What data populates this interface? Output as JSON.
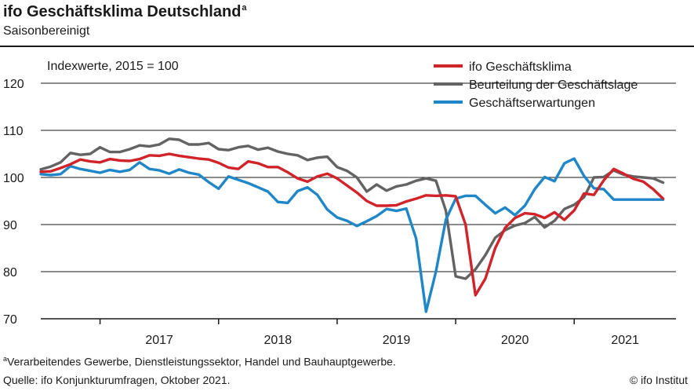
{
  "header": {
    "title": "ifo Geschäftsklima Deutschland",
    "title_mark": "a",
    "subtitle": "Saisonbereinigt"
  },
  "footer": {
    "note_mark": "a",
    "note": "Verarbeitendes Gewerbe, Dienstleistungssektor, Handel und Bauhauptgewerbe.",
    "source": "Quelle: ifo Konjunkturumfragen, Oktober 2021.",
    "copyright": "© ifo Institut"
  },
  "chart_data": {
    "type": "line",
    "index_label": "Indexwerte, 2015 = 100",
    "x_start": "2016-07",
    "x_end": "2021-10",
    "ylim": [
      70,
      120
    ],
    "yticks": [
      70,
      80,
      90,
      100,
      110,
      120
    ],
    "year_labels": [
      "2017",
      "2018",
      "2019",
      "2020",
      "2021"
    ],
    "year_boundaries": [
      "2017-01",
      "2018-01",
      "2019-01",
      "2020-01",
      "2021-01"
    ],
    "grid": true,
    "legend_position": "top-right",
    "series": [
      {
        "name": "ifo Geschäftsklima",
        "color": "#d1232a",
        "x": [
          "2016-07",
          "2016-08",
          "2016-09",
          "2016-10",
          "2016-11",
          "2016-12",
          "2017-01",
          "2017-02",
          "2017-03",
          "2017-04",
          "2017-05",
          "2017-06",
          "2017-07",
          "2017-08",
          "2017-09",
          "2017-10",
          "2017-11",
          "2017-12",
          "2018-01",
          "2018-02",
          "2018-03",
          "2018-04",
          "2018-05",
          "2018-06",
          "2018-07",
          "2018-08",
          "2018-09",
          "2018-10",
          "2018-11",
          "2018-12",
          "2019-01",
          "2019-02",
          "2019-03",
          "2019-04",
          "2019-05",
          "2019-06",
          "2019-07",
          "2019-08",
          "2019-09",
          "2019-10",
          "2019-11",
          "2019-12",
          "2020-01",
          "2020-02",
          "2020-03",
          "2020-04",
          "2020-05",
          "2020-06",
          "2020-07",
          "2020-08",
          "2020-09",
          "2020-10",
          "2020-11",
          "2020-12",
          "2021-01",
          "2021-02",
          "2021-03",
          "2021-04",
          "2021-05",
          "2021-06",
          "2021-07",
          "2021-08",
          "2021-09",
          "2021-10"
        ],
        "values": [
          101.2,
          101.3,
          102.0,
          102.8,
          103.8,
          103.4,
          103.2,
          103.9,
          103.6,
          103.5,
          103.9,
          104.7,
          104.6,
          105.0,
          104.6,
          104.3,
          104.0,
          103.8,
          103.1,
          102.1,
          101.8,
          103.4,
          103.0,
          102.2,
          102.2,
          101.1,
          99.8,
          99.1,
          100.2,
          100.8,
          99.8,
          98.3,
          96.8,
          95.0,
          94.0,
          94.0,
          94.1,
          94.9,
          95.5,
          96.2,
          96.1,
          96.2,
          96.0,
          90.0,
          75.0,
          78.5,
          85.0,
          89.3,
          91.4,
          92.4,
          92.2,
          91.4,
          92.6,
          91.0,
          93.0,
          96.6,
          96.3,
          99.4,
          101.8,
          100.8,
          99.7,
          99.1,
          97.5,
          95.5
        ]
      },
      {
        "name": "Beurteilung der Geschäftslage",
        "color": "#636363",
        "x": [
          "2016-07",
          "2016-08",
          "2016-09",
          "2016-10",
          "2016-11",
          "2016-12",
          "2017-01",
          "2017-02",
          "2017-03",
          "2017-04",
          "2017-05",
          "2017-06",
          "2017-07",
          "2017-08",
          "2017-09",
          "2017-10",
          "2017-11",
          "2017-12",
          "2018-01",
          "2018-02",
          "2018-03",
          "2018-04",
          "2018-05",
          "2018-06",
          "2018-07",
          "2018-08",
          "2018-09",
          "2018-10",
          "2018-11",
          "2018-12",
          "2019-01",
          "2019-02",
          "2019-03",
          "2019-04",
          "2019-05",
          "2019-06",
          "2019-07",
          "2019-08",
          "2019-09",
          "2019-10",
          "2019-11",
          "2019-12",
          "2020-01",
          "2020-02",
          "2020-03",
          "2020-04",
          "2020-05",
          "2020-06",
          "2020-07",
          "2020-08",
          "2020-09",
          "2020-10",
          "2020-11",
          "2020-12",
          "2021-01",
          "2021-02",
          "2021-03",
          "2021-04",
          "2021-05",
          "2021-06",
          "2021-07",
          "2021-08",
          "2021-09",
          "2021-10"
        ],
        "values": [
          101.7,
          102.3,
          103.2,
          105.2,
          104.8,
          105.0,
          106.4,
          105.4,
          105.4,
          106.0,
          106.8,
          106.6,
          107.0,
          108.2,
          108.0,
          107.0,
          107.0,
          107.3,
          106.0,
          105.8,
          106.4,
          106.7,
          105.9,
          106.3,
          105.5,
          105.0,
          104.7,
          103.7,
          104.2,
          104.4,
          102.2,
          101.4,
          100.0,
          97.0,
          98.5,
          97.2,
          98.1,
          98.5,
          99.3,
          99.8,
          99.3,
          93.0,
          79.0,
          78.5,
          80.5,
          83.5,
          87.2,
          88.8,
          89.8,
          90.3,
          91.6,
          89.4,
          90.8,
          93.3,
          94.2,
          95.8,
          100.0,
          100.1,
          101.5,
          100.6,
          100.2,
          100.0,
          99.8,
          98.9
        ]
      },
      {
        "name": "Geschäftserwartungen",
        "color": "#1f86c8",
        "x": [
          "2016-07",
          "2016-08",
          "2016-09",
          "2016-10",
          "2016-11",
          "2016-12",
          "2017-01",
          "2017-02",
          "2017-03",
          "2017-04",
          "2017-05",
          "2017-06",
          "2017-07",
          "2017-08",
          "2017-09",
          "2017-10",
          "2017-11",
          "2017-12",
          "2018-01",
          "2018-02",
          "2018-03",
          "2018-04",
          "2018-05",
          "2018-06",
          "2018-07",
          "2018-08",
          "2018-09",
          "2018-10",
          "2018-11",
          "2018-12",
          "2019-01",
          "2019-02",
          "2019-03",
          "2019-04",
          "2019-05",
          "2019-06",
          "2019-07",
          "2019-08",
          "2019-09",
          "2019-10",
          "2019-11",
          "2019-12",
          "2020-01",
          "2020-02",
          "2020-03",
          "2020-04",
          "2020-05",
          "2020-06",
          "2020-07",
          "2020-08",
          "2020-09",
          "2020-10",
          "2020-11",
          "2020-12",
          "2021-01",
          "2021-02",
          "2021-03",
          "2021-04",
          "2021-05",
          "2021-06",
          "2021-07",
          "2021-08",
          "2021-09",
          "2021-10"
        ],
        "values": [
          100.7,
          100.5,
          100.7,
          102.4,
          101.8,
          101.4,
          101.0,
          101.6,
          101.2,
          101.6,
          103.2,
          101.8,
          101.5,
          100.8,
          101.7,
          101.0,
          100.6,
          99.0,
          97.6,
          100.2,
          99.5,
          98.8,
          97.9,
          97.0,
          94.8,
          94.6,
          97.1,
          97.9,
          96.3,
          93.2,
          91.5,
          90.8,
          89.7,
          90.7,
          91.8,
          93.3,
          92.9,
          93.4,
          87.0,
          71.5,
          80.0,
          91.0,
          95.5,
          96.1,
          96.1,
          94.2,
          92.4,
          93.6,
          92.0,
          94.0,
          97.5,
          100.1,
          99.2,
          103.0,
          104.0,
          100.3,
          97.7,
          97.5,
          95.3,
          95.3,
          95.3,
          95.3,
          95.3,
          95.3
        ]
      }
    ]
  }
}
